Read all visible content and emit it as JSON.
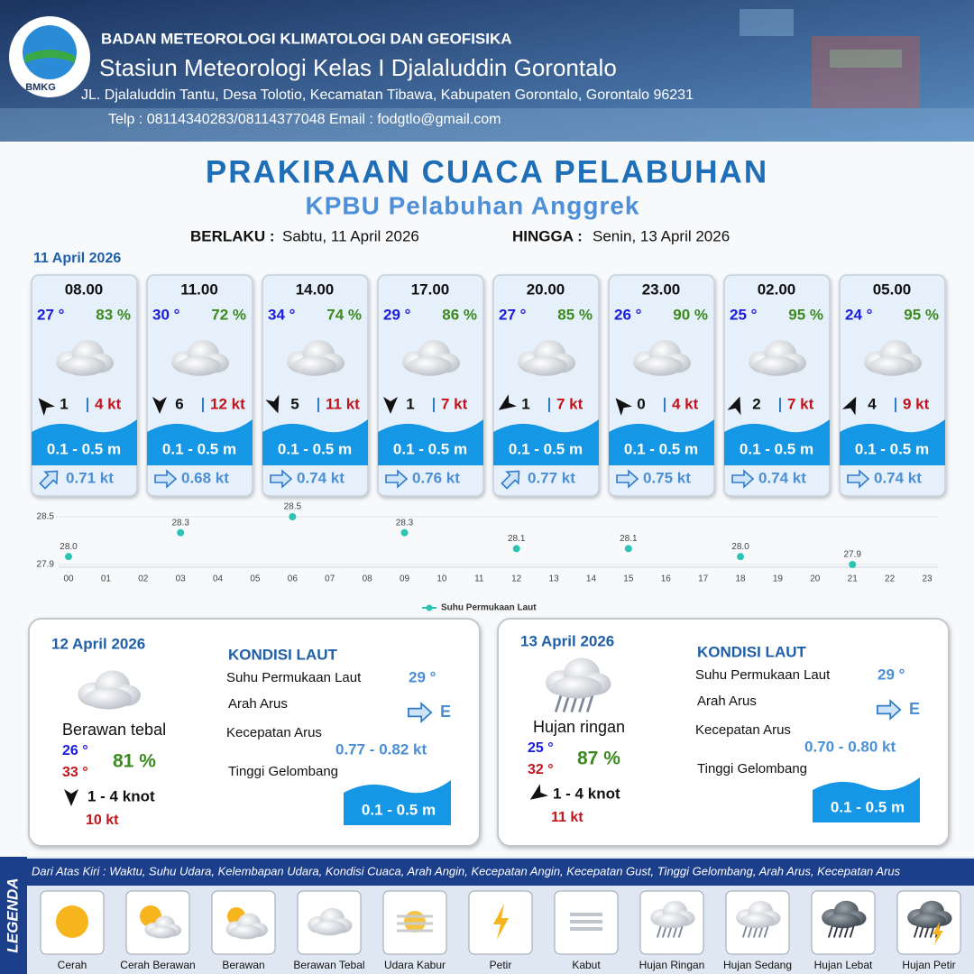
{
  "header": {
    "organization": "BADAN METEOROLOGI KLIMATOLOGI DAN GEOFISIKA",
    "station": "Stasiun Meteorologi Kelas I Djalaluddin Gorontalo",
    "address": "JL. Djalaluddin Tantu, Desa Tolotio, Kecamatan Tibawa, Kabupaten Gorontalo, Gorontalo 96231",
    "contact": "Telp : 08114340283/08114377048 Email : fodgtlo@gmail.com",
    "logo": "BMKG"
  },
  "title": "PRAKIRAAN CUACA PELABUHAN",
  "subtitle": "KPBU Pelabuhan Anggrek",
  "validity": {
    "from_label": "BERLAKU :",
    "from": "Sabtu, 11 April 2026",
    "to_label": "HINGGA :",
    "to": "Senin, 13 April 2026"
  },
  "day1": {
    "date": "11 April 2026",
    "forecasts": [
      {
        "time": "08.00",
        "temp": "27 °",
        "humidity": "83 %",
        "wind": "1",
        "gust": "4 kt",
        "wave": "0.1 - 0.5 m",
        "current": "0.71 kt"
      },
      {
        "time": "11.00",
        "temp": "30 °",
        "humidity": "72 %",
        "wind": "6",
        "gust": "12 kt",
        "wave": "0.1 - 0.5 m",
        "current": "0.68 kt"
      },
      {
        "time": "14.00",
        "temp": "34 °",
        "humidity": "74 %",
        "wind": "5",
        "gust": "11 kt",
        "wave": "0.1 - 0.5 m",
        "current": "0.74 kt"
      },
      {
        "time": "17.00",
        "temp": "29 °",
        "humidity": "86 %",
        "wind": "1",
        "gust": "7 kt",
        "wave": "0.1 - 0.5 m",
        "current": "0.76 kt"
      },
      {
        "time": "20.00",
        "temp": "27 °",
        "humidity": "85 %",
        "wind": "1",
        "gust": "7 kt",
        "wave": "0.1 - 0.5 m",
        "current": "0.77 kt"
      },
      {
        "time": "23.00",
        "temp": "26 °",
        "humidity": "90 %",
        "wind": "0",
        "gust": "4 kt",
        "wave": "0.1 - 0.5 m",
        "current": "0.75 kt"
      },
      {
        "time": "02.00",
        "temp": "25 °",
        "humidity": "95 %",
        "wind": "2",
        "gust": "7 kt",
        "wave": "0.1 - 0.5 m",
        "current": "0.74 kt"
      },
      {
        "time": "05.00",
        "temp": "24 °",
        "humidity": "95 %",
        "wind": "4",
        "gust": "9 kt",
        "wave": "0.1 - 0.5 m",
        "current": "0.74 kt"
      }
    ]
  },
  "chart_data": {
    "type": "scatter",
    "categories": [
      "00",
      "01",
      "02",
      "03",
      "04",
      "05",
      "06",
      "07",
      "08",
      "09",
      "10",
      "11",
      "12",
      "13",
      "14",
      "15",
      "16",
      "17",
      "18",
      "19",
      "20",
      "21",
      "22",
      "23"
    ],
    "series": [
      {
        "name": "Suhu Permukaan Laut",
        "color": "#2cc4b4",
        "values": [
          28.0,
          null,
          null,
          28.3,
          null,
          null,
          28.5,
          null,
          null,
          28.3,
          null,
          null,
          28.1,
          null,
          null,
          28.1,
          null,
          null,
          28.0,
          null,
          null,
          27.9,
          null,
          null
        ],
        "value_labels": [
          "28.0",
          null,
          null,
          "28.3",
          null,
          null,
          "28.5",
          null,
          null,
          "28.3",
          null,
          null,
          "28.1",
          null,
          null,
          "28.1",
          null,
          null,
          "28.0",
          null,
          null,
          "27.9",
          null,
          null
        ]
      }
    ],
    "ylim": [
      27.9,
      28.5
    ],
    "yticks": [
      27.9,
      28.5
    ],
    "grid": true
  },
  "day2": {
    "date": "12 April 2026",
    "weather": "Berawan tebal",
    "temp_min": "26 °",
    "temp_max": "33 °",
    "humidity": "81 %",
    "wind": "1 - 4 knot",
    "gust": "10 kt",
    "sea": {
      "title": "KONDISI LAUT",
      "sst_label": "Suhu Permukaan Laut",
      "sst": "29 °",
      "current_dir_label": "Arah Arus",
      "current_dir": "E",
      "current_speed_label": "Kecepatan Arus",
      "current_speed": "0.77 - 0.82 kt",
      "wave_label": "Tinggi Gelombang",
      "wave": "0.1 - 0.5 m"
    }
  },
  "day3": {
    "date": "13 April 2026",
    "weather": "Hujan ringan",
    "temp_min": "25 °",
    "temp_max": "32 °",
    "humidity": "87 %",
    "wind": "1 - 4 knot",
    "gust": "11 kt",
    "sea": {
      "title": "KONDISI LAUT",
      "sst_label": "Suhu Permukaan Laut",
      "sst": "29 °",
      "current_dir_label": "Arah Arus",
      "current_dir": "E",
      "current_speed_label": "Kecepatan Arus",
      "current_speed": "0.70 - 0.80 kt",
      "wave_label": "Tinggi Gelombang",
      "wave": "0.1 - 0.5 m"
    }
  },
  "legend": {
    "title": "LEGENDA",
    "description": "Dari Atas Kiri : Waktu, Suhu Udara, Kelembapan Udara, Kondisi Cuaca, Arah Angin, Kecepatan Angin, Kecepatan Gust, Tinggi Gelombang, Arah Arus, Kecepatan Arus",
    "items": [
      "Cerah",
      "Cerah Berawan",
      "Berawan",
      "Berawan Tebal",
      "Udara Kabur",
      "Petir",
      "Kabut",
      "Hujan Ringan",
      "Hujan Sedang",
      "Hujan Lebat",
      "Hujan Petir"
    ]
  }
}
